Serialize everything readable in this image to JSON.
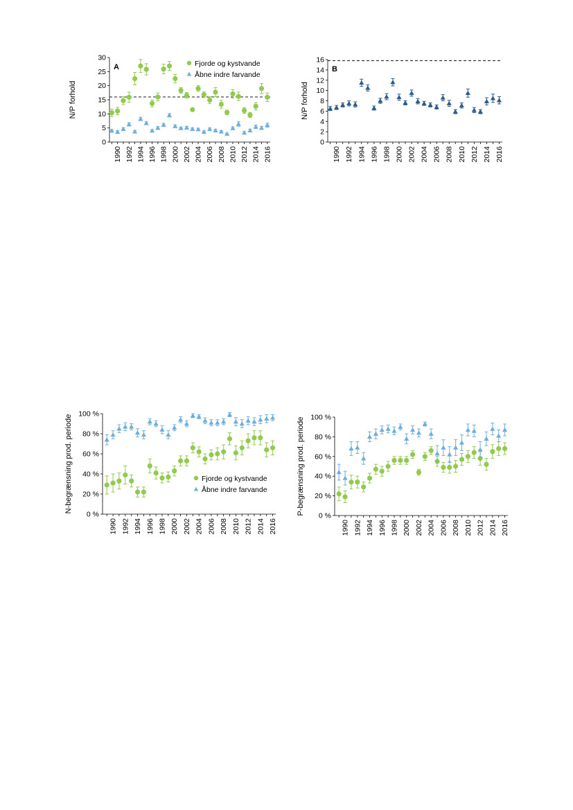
{
  "colors": {
    "green": "#92c94f",
    "light_blue": "#6faedb",
    "dark_blue": "#2f5b8c",
    "reference_line": "#333333"
  },
  "chart_data": [
    {
      "type": "scatter",
      "panel_label": "A",
      "ylabel": "N/P forhold",
      "ylim": [
        0,
        30
      ],
      "yticks": [
        0,
        5,
        10,
        15,
        20,
        25,
        30
      ],
      "xticks": [
        1990,
        1992,
        1994,
        1996,
        1998,
        2000,
        2002,
        2004,
        2006,
        2008,
        2010,
        2012,
        2014,
        2016
      ],
      "xlim": [
        1988.6,
        2016.5
      ],
      "reference_line": 16,
      "legend_position": "top-right",
      "series": [
        {
          "name": "Fjorde og kystvande",
          "marker": "circle",
          "color": "#92c94f",
          "x": [
            1989,
            1990,
            1991,
            1992,
            1993,
            1994,
            1995,
            1996,
            1997,
            1998,
            1999,
            2000,
            2001,
            2002,
            2003,
            2004,
            2005,
            2006,
            2007,
            2008,
            2009,
            2010,
            2011,
            2012,
            2013,
            2014,
            2015,
            2016
          ],
          "y": [
            10.4,
            11.0,
            14.7,
            15.9,
            22.5,
            27.0,
            25.8,
            13.7,
            16.0,
            25.9,
            27.0,
            22.5,
            18.3,
            16.6,
            11.5,
            19.0,
            16.8,
            14.9,
            17.7,
            13.4,
            10.5,
            17.1,
            16.2,
            11.2,
            9.6,
            12.7,
            19.0,
            15.9
          ],
          "err": [
            1.3,
            1.3,
            1.4,
            1.8,
            2.2,
            2.3,
            2.0,
            1.2,
            1.4,
            1.7,
            1.6,
            1.5,
            1.0,
            1.0,
            0.5,
            1.0,
            1.0,
            1.2,
            1.6,
            1.4,
            0.8,
            1.5,
            1.5,
            1.0,
            0.9,
            1.3,
            1.8,
            1.5
          ]
        },
        {
          "name": "Åbne indre farvande",
          "marker": "triangle",
          "color": "#6faedb",
          "x": [
            1989,
            1990,
            1991,
            1992,
            1993,
            1994,
            1995,
            1996,
            1997,
            1998,
            1999,
            2000,
            2001,
            2002,
            2003,
            2004,
            2005,
            2006,
            2007,
            2008,
            2009,
            2010,
            2011,
            2012,
            2013,
            2014,
            2015,
            2016
          ],
          "y": [
            4.0,
            3.6,
            4.6,
            6.3,
            3.7,
            8.2,
            6.7,
            4.0,
            5.0,
            6.1,
            9.5,
            5.6,
            4.9,
            5.1,
            4.6,
            4.5,
            3.6,
            4.6,
            4.1,
            3.7,
            2.9,
            4.9,
            6.4,
            3.3,
            4.1,
            5.4,
            5.0,
            6.0
          ],
          "err": [
            0.4,
            0.4,
            0.5,
            0.6,
            0.4,
            0.6,
            0.5,
            0.4,
            0.5,
            0.5,
            0.6,
            0.5,
            0.4,
            0.4,
            0.4,
            0.4,
            0.4,
            0.4,
            0.4,
            0.4,
            0.3,
            0.5,
            0.8,
            0.4,
            0.5,
            0.6,
            0.5,
            0.7
          ]
        }
      ]
    },
    {
      "type": "scatter",
      "panel_label": "B",
      "ylabel": "N/P forhold",
      "ylim": [
        0,
        16
      ],
      "yticks": [
        0,
        2,
        4,
        6,
        8,
        10,
        12,
        14,
        16
      ],
      "xticks": [
        1990,
        1992,
        1994,
        1996,
        1998,
        2000,
        2002,
        2004,
        2006,
        2008,
        2010,
        2012,
        2014,
        2016
      ],
      "xlim": [
        1988.6,
        2016.5
      ],
      "reference_line": 15.8,
      "series": [
        {
          "name": "",
          "marker": "triangle",
          "color": "#2f5b8c",
          "x": [
            1989,
            1990,
            1991,
            1992,
            1993,
            1994,
            1995,
            1996,
            1997,
            1998,
            1999,
            2000,
            2001,
            2002,
            2003,
            2004,
            2005,
            2006,
            2007,
            2008,
            2009,
            2010,
            2011,
            2012,
            2013,
            2014,
            2015,
            2016
          ],
          "y": [
            6.5,
            6.7,
            7.2,
            7.5,
            7.3,
            11.5,
            10.5,
            6.6,
            8.0,
            8.8,
            11.6,
            8.7,
            7.6,
            9.5,
            7.9,
            7.5,
            7.2,
            6.8,
            8.6,
            7.5,
            5.9,
            7.1,
            9.5,
            6.2,
            5.9,
            7.9,
            8.5,
            8.1
          ],
          "err": [
            0.4,
            0.4,
            0.4,
            0.5,
            0.5,
            0.7,
            0.6,
            0.4,
            0.5,
            0.6,
            0.7,
            0.6,
            0.4,
            0.6,
            0.5,
            0.4,
            0.4,
            0.4,
            0.6,
            0.6,
            0.4,
            0.5,
            0.8,
            0.5,
            0.4,
            0.7,
            0.8,
            0.7
          ]
        }
      ]
    },
    {
      "type": "scatter",
      "ylabel": "N-begrænsning prod. periode",
      "ylim": [
        0,
        100
      ],
      "yticks": [
        0,
        20,
        40,
        60,
        80,
        100
      ],
      "ytick_suffix": " %",
      "xticks": [
        1990,
        1992,
        1994,
        1996,
        1998,
        2000,
        2002,
        2004,
        2006,
        2008,
        2010,
        2012,
        2014,
        2016
      ],
      "xlim": [
        1988.3,
        2016.5
      ],
      "legend_position": "bottom-right",
      "series": [
        {
          "name": "Fjorde og kystvande",
          "marker": "circle",
          "color": "#92c94f",
          "x": [
            1989,
            1990,
            1991,
            1992,
            1993,
            1994,
            1995,
            1996,
            1997,
            1998,
            1999,
            2000,
            2001,
            2002,
            2003,
            2004,
            2005,
            2006,
            2007,
            2008,
            2009,
            2010,
            2011,
            2012,
            2013,
            2014,
            2015,
            2016
          ],
          "y": [
            29,
            31,
            33,
            39,
            33,
            22,
            22,
            48,
            41,
            36,
            37,
            43,
            53,
            53,
            66,
            62,
            55,
            59,
            60,
            62,
            75,
            61,
            66,
            73,
            76,
            76,
            64,
            66
          ],
          "err": [
            9,
            9,
            8,
            9,
            6,
            5,
            5,
            7,
            6,
            5,
            5,
            5,
            5,
            5,
            5,
            5,
            5,
            5,
            6,
            7,
            6,
            7,
            7,
            7,
            7,
            7,
            7,
            7
          ]
        },
        {
          "name": "Åbne indre farvande",
          "marker": "triangle",
          "color": "#6faedb",
          "x": [
            1989,
            1990,
            1991,
            1992,
            1993,
            1994,
            1995,
            1996,
            1997,
            1998,
            1999,
            2000,
            2001,
            2002,
            2003,
            2004,
            2005,
            2006,
            2007,
            2008,
            2009,
            2010,
            2011,
            2012,
            2013,
            2014,
            2015,
            2016
          ],
          "y": [
            74,
            79,
            85,
            87,
            87,
            81,
            79,
            92,
            90,
            84,
            79,
            86,
            94,
            90,
            98,
            97,
            93,
            91,
            91,
            92,
            99,
            92,
            90,
            93,
            92,
            94,
            95,
            96
          ],
          "err": [
            5,
            4,
            4,
            4,
            3,
            4,
            4,
            3,
            3,
            4,
            4,
            3,
            3,
            3,
            2,
            2,
            3,
            3,
            3,
            3,
            2,
            4,
            4,
            4,
            4,
            4,
            4,
            3
          ]
        }
      ]
    },
    {
      "type": "scatter",
      "ylabel": "P-begrænsning prod. periode",
      "ylim": [
        0,
        100
      ],
      "yticks": [
        0,
        20,
        40,
        60,
        80,
        100
      ],
      "ytick_suffix": " %",
      "xticks": [
        1990,
        1992,
        1994,
        1996,
        1998,
        2000,
        2002,
        2004,
        2006,
        2008,
        2010,
        2012,
        2014,
        2016
      ],
      "xlim": [
        1988.3,
        2016.5
      ],
      "series": [
        {
          "name": "",
          "marker": "circle",
          "color": "#92c94f",
          "x": [
            1989,
            1990,
            1991,
            1992,
            1993,
            1994,
            1995,
            1996,
            1997,
            1998,
            1999,
            2000,
            2001,
            2002,
            2003,
            2004,
            2005,
            2006,
            2007,
            2008,
            2009,
            2010,
            2011,
            2012,
            2013,
            2014,
            2015,
            2016
          ],
          "y": [
            22,
            19,
            34,
            34,
            29,
            38,
            47,
            45,
            50,
            56,
            56,
            56,
            62,
            44,
            60,
            66,
            55,
            49,
            49,
            50,
            57,
            60,
            64,
            58,
            52,
            65,
            68,
            68
          ],
          "err": [
            7,
            6,
            7,
            6,
            5,
            5,
            5,
            5,
            5,
            4,
            4,
            4,
            4,
            3,
            4,
            4,
            5,
            5,
            6,
            6,
            6,
            6,
            6,
            7,
            6,
            7,
            7,
            6
          ]
        },
        {
          "name": "",
          "marker": "triangle",
          "color": "#6faedb",
          "x": [
            1989,
            1990,
            1991,
            1992,
            1993,
            1994,
            1995,
            1996,
            1997,
            1998,
            1999,
            2000,
            2001,
            2002,
            2003,
            2004,
            2005,
            2006,
            2007,
            2008,
            2009,
            2010,
            2011,
            2012,
            2013,
            2014,
            2015,
            2016
          ],
          "y": [
            44,
            38,
            68,
            69,
            58,
            80,
            83,
            87,
            88,
            86,
            90,
            78,
            87,
            84,
            93,
            83,
            63,
            69,
            62,
            69,
            74,
            87,
            86,
            67,
            78,
            88,
            81,
            87
          ],
          "err": [
            8,
            7,
            7,
            6,
            6,
            5,
            5,
            4,
            4,
            4,
            3,
            5,
            4,
            4,
            2,
            5,
            8,
            8,
            8,
            8,
            8,
            6,
            6,
            8,
            7,
            6,
            6,
            6
          ]
        }
      ]
    }
  ]
}
